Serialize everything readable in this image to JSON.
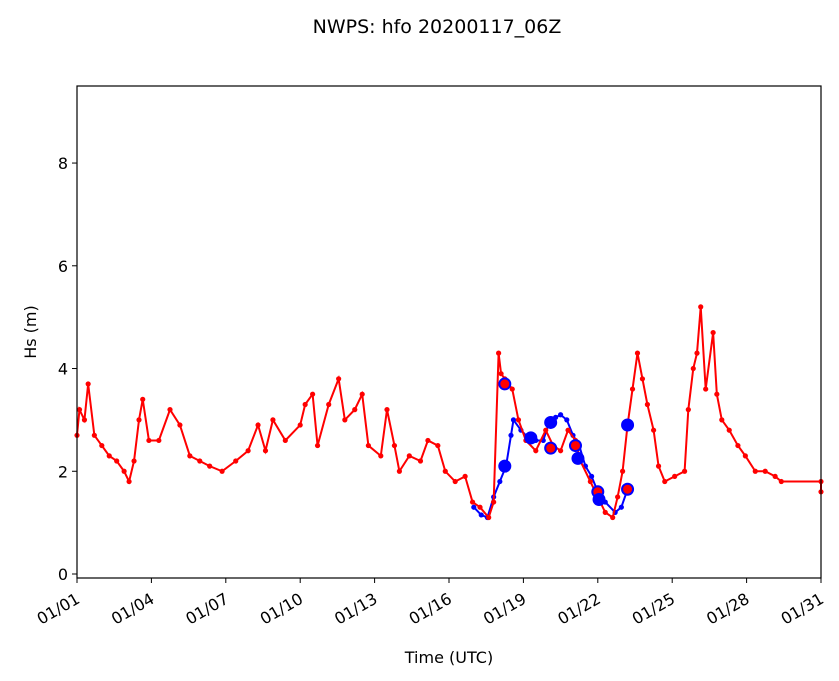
{
  "chart_data": {
    "type": "line",
    "title": "NWPS: hfo 20200117_06Z",
    "xlabel": "Time (UTC)",
    "ylabel": "Hs (m)",
    "xlim": [
      0,
      30
    ],
    "ylim": [
      0,
      9.5
    ],
    "x_unit": "days since 01/01",
    "xticks": [
      0,
      3,
      6,
      9,
      12,
      15,
      18,
      21,
      24,
      27,
      30
    ],
    "xtick_labels": [
      "01/01",
      "01/04",
      "01/07",
      "01/10",
      "01/13",
      "01/16",
      "01/19",
      "01/22",
      "01/25",
      "01/28",
      "01/31"
    ],
    "yticks": [
      0,
      2,
      4,
      6,
      8
    ],
    "ytick_labels": [
      "0",
      "2",
      "4",
      "6",
      "8"
    ],
    "grid": false,
    "series": [
      {
        "name": "model",
        "color": "#0000ff",
        "marker": "dot",
        "x": [
          16.0,
          16.3,
          16.55,
          16.8,
          17.05,
          17.3,
          17.5,
          17.6,
          17.9,
          18.2,
          18.5,
          18.8,
          19.0,
          19.3,
          19.5,
          19.75,
          20.0,
          20.25,
          20.5,
          20.75,
          21.0,
          21.3,
          21.7,
          21.95,
          22.2
        ],
        "y": [
          1.3,
          1.15,
          1.1,
          1.5,
          1.8,
          2.1,
          2.7,
          3.0,
          2.8,
          2.65,
          2.6,
          2.6,
          2.9,
          3.05,
          3.1,
          3.0,
          2.7,
          2.5,
          2.1,
          1.9,
          1.6,
          1.4,
          1.2,
          1.3,
          1.65
        ]
      },
      {
        "name": "observed",
        "color": "#ff0000",
        "marker": "dot",
        "x": [
          0,
          0.1,
          0.3,
          0.45,
          0.7,
          1.0,
          1.3,
          1.6,
          1.9,
          2.1,
          2.3,
          2.5,
          2.65,
          2.9,
          3.3,
          3.75,
          4.15,
          4.55,
          4.95,
          5.35,
          5.85,
          6.4,
          6.9,
          7.3,
          7.6,
          7.9,
          8.4,
          9.0,
          9.2,
          9.5,
          9.7,
          10.15,
          10.55,
          10.8,
          11.2,
          11.5,
          11.75,
          12.25,
          12.5,
          12.8,
          13.0,
          13.4,
          13.85,
          14.15,
          14.55,
          14.85,
          15.25,
          15.65,
          15.95,
          16.25,
          16.6,
          16.8,
          17.0,
          17.1,
          17.25,
          17.55,
          17.8,
          18.1,
          18.5,
          18.9,
          19.2,
          19.5,
          19.8,
          20.1,
          20.3,
          20.7,
          21.0,
          21.3,
          21.6,
          21.8,
          22.0,
          22.2,
          22.4,
          22.6,
          22.8,
          23.0,
          23.25,
          23.45,
          23.7,
          24.1,
          24.5,
          24.65,
          24.85,
          25.0,
          25.15,
          25.35,
          25.65,
          25.8,
          26.0,
          26.3,
          26.65,
          26.95,
          27.35,
          27.75,
          28.15,
          28.4,
          30.0,
          30.0
        ],
        "y": [
          2.7,
          3.2,
          3.0,
          3.7,
          2.7,
          2.5,
          2.3,
          2.2,
          2.0,
          1.8,
          2.2,
          3.0,
          3.4,
          2.6,
          2.6,
          3.2,
          2.9,
          2.3,
          2.2,
          2.1,
          2.0,
          2.2,
          2.4,
          2.9,
          2.4,
          3.0,
          2.6,
          2.9,
          3.3,
          3.5,
          2.5,
          3.3,
          3.8,
          3.0,
          3.2,
          3.5,
          2.5,
          2.3,
          3.2,
          2.5,
          2.0,
          2.3,
          2.2,
          2.6,
          2.5,
          2.0,
          1.8,
          1.9,
          1.4,
          1.3,
          1.1,
          1.4,
          4.3,
          3.9,
          3.8,
          3.6,
          3.0,
          2.6,
          2.4,
          2.8,
          2.5,
          2.4,
          2.8,
          2.6,
          2.2,
          1.8,
          1.5,
          1.2,
          1.1,
          1.5,
          2.0,
          2.9,
          3.6,
          4.3,
          3.8,
          3.3,
          2.8,
          2.1,
          1.8,
          1.9,
          2.0,
          3.2,
          4.0,
          4.3,
          5.2,
          3.6,
          4.7,
          3.5,
          3.0,
          2.8,
          2.5,
          2.3,
          2.0,
          2.0,
          1.9,
          1.8,
          1.8,
          1.6
        ]
      },
      {
        "name": "model-at-obs",
        "color": "#0000ff",
        "marker": "large-circle",
        "x": [
          17.25,
          17.25,
          18.3,
          19.1,
          19.1,
          20.1,
          20.2,
          21.0,
          21.05,
          22.2,
          22.2
        ],
        "y": [
          2.1,
          3.7,
          2.65,
          2.45,
          2.95,
          2.5,
          2.25,
          1.6,
          1.45,
          1.65,
          2.9
        ]
      }
    ]
  }
}
